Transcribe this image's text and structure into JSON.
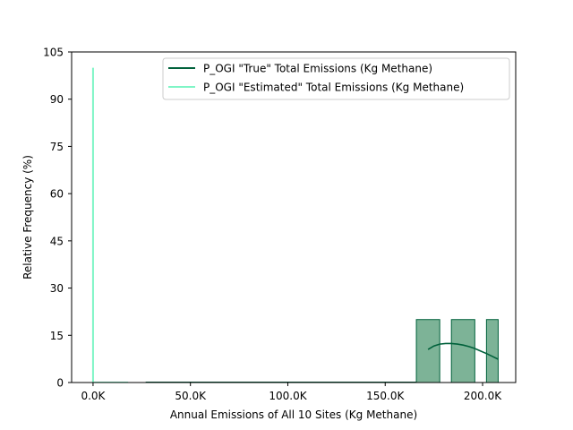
{
  "chart_data": {
    "type": "histogram",
    "title": "",
    "xlabel": "Annual Emissions of All 10 Sites (Kg Methane)",
    "ylabel": "Relative Frequency (%)",
    "xlim": [
      -11000,
      217000
    ],
    "ylim": [
      0,
      105
    ],
    "x_ticks": [
      {
        "value": 0,
        "label": "0.0K"
      },
      {
        "value": 50000,
        "label": "50.0K"
      },
      {
        "value": 100000,
        "label": "100.0K"
      },
      {
        "value": 150000,
        "label": "150.0K"
      },
      {
        "value": 200000,
        "label": "200.0K"
      }
    ],
    "y_ticks": [
      {
        "value": 0,
        "label": "0"
      },
      {
        "value": 15,
        "label": "15"
      },
      {
        "value": 30,
        "label": "30"
      },
      {
        "value": 45,
        "label": "45"
      },
      {
        "value": 60,
        "label": "60"
      },
      {
        "value": 75,
        "label": "75"
      },
      {
        "value": 90,
        "label": "90"
      },
      {
        "value": 105,
        "label": "105"
      }
    ],
    "grid": false,
    "legend_position": "top-right",
    "series": [
      {
        "name": "P_OGI \"True\" Total Emissions (Kg Methane)",
        "color": "#00613b",
        "fill_color": "#7db397",
        "bins": [
          {
            "x0": 166000,
            "x1": 178000,
            "value": 20
          },
          {
            "x0": 184000,
            "x1": 196000,
            "value": 20
          },
          {
            "x0": 202000,
            "x1": 208000,
            "value": 20
          }
        ],
        "kde": {
          "x": [
            172000,
            175000,
            178000,
            181000,
            184000,
            187000,
            190000,
            193000,
            196000,
            199000,
            202000,
            205000,
            208000
          ],
          "y": [
            10.5,
            11.6,
            12.2,
            12.4,
            12.4,
            12.2,
            11.9,
            11.4,
            10.8,
            10.0,
            9.2,
            8.3,
            7.4
          ]
        }
      },
      {
        "name": "P_OGI \"Estimated\" Total Emissions (Kg Methane)",
        "color": "#7ff5c6",
        "x": 0,
        "value": 100
      }
    ]
  }
}
